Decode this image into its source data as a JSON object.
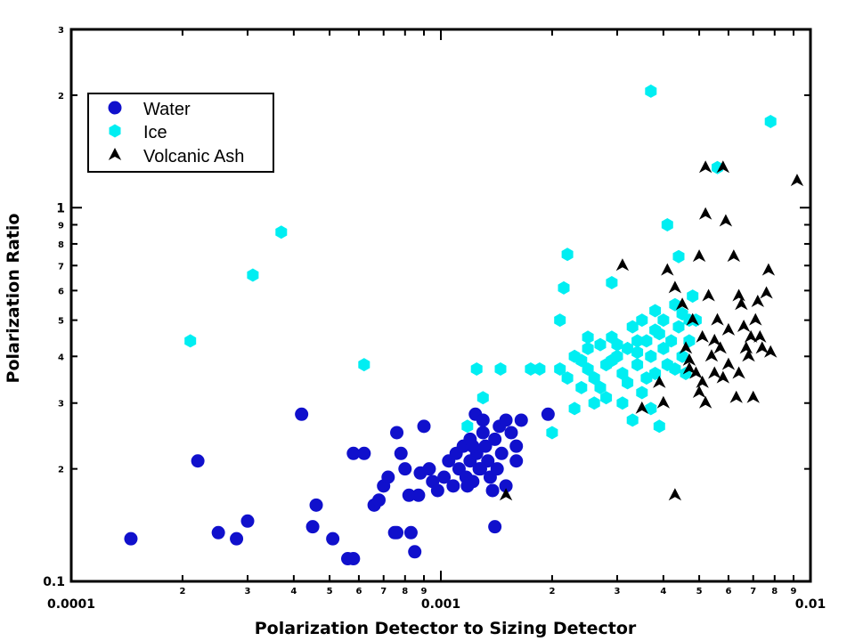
{
  "chart_data": {
    "type": "scatter",
    "xscale": "log",
    "yscale": "log",
    "xlim": [
      0.0001,
      0.01
    ],
    "ylim": [
      0.1,
      3
    ],
    "xlabel": "Polarization Detector to Sizing Detector",
    "ylabel": "Polarization Ratio",
    "x_major_ticks": [
      {
        "v": 0.0001,
        "label": "0.0001"
      },
      {
        "v": 0.001,
        "label": "0.001"
      },
      {
        "v": 0.01,
        "label": "0.01"
      }
    ],
    "x_minor_ticks": [
      {
        "v": 0.0002,
        "label": "2"
      },
      {
        "v": 0.0003,
        "label": "3"
      },
      {
        "v": 0.0004,
        "label": "4"
      },
      {
        "v": 0.0005,
        "label": "5"
      },
      {
        "v": 0.0006,
        "label": "6"
      },
      {
        "v": 0.0007,
        "label": "7"
      },
      {
        "v": 0.0008,
        "label": "8"
      },
      {
        "v": 0.0009,
        "label": "9"
      },
      {
        "v": 0.002,
        "label": "2"
      },
      {
        "v": 0.003,
        "label": "3"
      },
      {
        "v": 0.004,
        "label": "4"
      },
      {
        "v": 0.005,
        "label": "5"
      },
      {
        "v": 0.006,
        "label": "6"
      },
      {
        "v": 0.007,
        "label": "7"
      },
      {
        "v": 0.008,
        "label": "8"
      },
      {
        "v": 0.009,
        "label": "9"
      }
    ],
    "y_major_ticks": [
      {
        "v": 0.1,
        "label": "0.1"
      },
      {
        "v": 1,
        "label": "1"
      }
    ],
    "y_minor_ticks": [
      {
        "v": 0.2,
        "label": "2"
      },
      {
        "v": 0.3,
        "label": "3"
      },
      {
        "v": 0.4,
        "label": "4"
      },
      {
        "v": 0.5,
        "label": "5"
      },
      {
        "v": 0.6,
        "label": "6"
      },
      {
        "v": 0.7,
        "label": "7"
      },
      {
        "v": 0.8,
        "label": "8"
      },
      {
        "v": 0.9,
        "label": "9"
      },
      {
        "v": 2,
        "label": "2"
      },
      {
        "v": 3,
        "label": "3"
      }
    ],
    "grid": false,
    "legend": "top-left",
    "series": [
      {
        "name": "Water",
        "marker": "circle",
        "color": "#1010cc",
        "points": [
          [
            0.000145,
            0.13
          ],
          [
            0.00022,
            0.21
          ],
          [
            0.00025,
            0.135
          ],
          [
            0.00028,
            0.13
          ],
          [
            0.0003,
            0.145
          ],
          [
            0.00042,
            0.28
          ],
          [
            0.00045,
            0.14
          ],
          [
            0.00046,
            0.16
          ],
          [
            0.00051,
            0.13
          ],
          [
            0.00056,
            0.115
          ],
          [
            0.00058,
            0.115
          ],
          [
            0.00058,
            0.22
          ],
          [
            0.00062,
            0.22
          ],
          [
            0.00066,
            0.16
          ],
          [
            0.00068,
            0.165
          ],
          [
            0.0007,
            0.18
          ],
          [
            0.00072,
            0.19
          ],
          [
            0.00075,
            0.135
          ],
          [
            0.00076,
            0.135
          ],
          [
            0.00076,
            0.25
          ],
          [
            0.00078,
            0.22
          ],
          [
            0.0008,
            0.2
          ],
          [
            0.00082,
            0.17
          ],
          [
            0.00083,
            0.135
          ],
          [
            0.00085,
            0.12
          ],
          [
            0.00087,
            0.17
          ],
          [
            0.00088,
            0.195
          ],
          [
            0.0009,
            0.26
          ],
          [
            0.00093,
            0.2
          ],
          [
            0.00095,
            0.185
          ],
          [
            0.00098,
            0.175
          ],
          [
            0.00102,
            0.19
          ],
          [
            0.00105,
            0.21
          ],
          [
            0.00108,
            0.18
          ],
          [
            0.0011,
            0.22
          ],
          [
            0.00112,
            0.2
          ],
          [
            0.00115,
            0.23
          ],
          [
            0.00117,
            0.19
          ],
          [
            0.0012,
            0.21
          ],
          [
            0.0012,
            0.24
          ],
          [
            0.00122,
            0.185
          ],
          [
            0.00124,
            0.28
          ],
          [
            0.00125,
            0.22
          ],
          [
            0.00127,
            0.2
          ],
          [
            0.0013,
            0.25
          ],
          [
            0.0013,
            0.27
          ],
          [
            0.00132,
            0.23
          ],
          [
            0.00134,
            0.21
          ],
          [
            0.00136,
            0.19
          ],
          [
            0.00138,
            0.175
          ],
          [
            0.0014,
            0.24
          ],
          [
            0.0014,
            0.14
          ],
          [
            0.00142,
            0.2
          ],
          [
            0.00144,
            0.26
          ],
          [
            0.00146,
            0.22
          ],
          [
            0.0015,
            0.27
          ],
          [
            0.0015,
            0.18
          ],
          [
            0.00155,
            0.25
          ],
          [
            0.0016,
            0.21
          ],
          [
            0.0016,
            0.23
          ],
          [
            0.00165,
            0.27
          ],
          [
            0.00195,
            0.28
          ],
          [
            0.00128,
            0.2
          ],
          [
            0.00122,
            0.23
          ],
          [
            0.00118,
            0.18
          ]
        ]
      },
      {
        "name": "Ice",
        "marker": "hexagon",
        "color": "#00eef2",
        "points": [
          [
            0.00021,
            0.44
          ],
          [
            0.00031,
            0.66
          ],
          [
            0.00037,
            0.86
          ],
          [
            0.00062,
            0.38
          ],
          [
            0.00118,
            0.26
          ],
          [
            0.00125,
            0.37
          ],
          [
            0.0013,
            0.31
          ],
          [
            0.00145,
            0.37
          ],
          [
            0.00175,
            0.37
          ],
          [
            0.00185,
            0.37
          ],
          [
            0.002,
            0.25
          ],
          [
            0.0021,
            0.37
          ],
          [
            0.0021,
            0.5
          ],
          [
            0.00215,
            0.61
          ],
          [
            0.0022,
            0.75
          ],
          [
            0.0023,
            0.29
          ],
          [
            0.0024,
            0.39
          ],
          [
            0.0025,
            0.42
          ],
          [
            0.0026,
            0.35
          ],
          [
            0.0027,
            0.33
          ],
          [
            0.0028,
            0.38
          ],
          [
            0.0029,
            0.45
          ],
          [
            0.003,
            0.4
          ],
          [
            0.0031,
            0.36
          ],
          [
            0.0032,
            0.42
          ],
          [
            0.0033,
            0.48
          ],
          [
            0.0034,
            0.38
          ],
          [
            0.0035,
            0.5
          ],
          [
            0.0036,
            0.44
          ],
          [
            0.0037,
            0.4
          ],
          [
            0.0038,
            0.36
          ],
          [
            0.0039,
            0.46
          ],
          [
            0.004,
            0.42
          ],
          [
            0.0041,
            0.38
          ],
          [
            0.0042,
            0.44
          ],
          [
            0.0043,
            0.55
          ],
          [
            0.0044,
            0.48
          ],
          [
            0.0045,
            0.4
          ],
          [
            0.0046,
            0.36
          ],
          [
            0.0047,
            0.5
          ],
          [
            0.0048,
            0.58
          ],
          [
            0.0029,
            0.63
          ],
          [
            0.0031,
            0.3
          ],
          [
            0.0033,
            0.27
          ],
          [
            0.0035,
            0.32
          ],
          [
            0.0026,
            0.3
          ],
          [
            0.0028,
            0.31
          ],
          [
            0.0024,
            0.33
          ],
          [
            0.0025,
            0.37
          ],
          [
            0.0027,
            0.43
          ],
          [
            0.0032,
            0.34
          ],
          [
            0.0034,
            0.44
          ],
          [
            0.0036,
            0.35
          ],
          [
            0.0037,
            0.29
          ],
          [
            0.0038,
            0.53
          ],
          [
            0.0039,
            0.26
          ],
          [
            0.0041,
            0.9
          ],
          [
            0.0044,
            0.74
          ],
          [
            0.0037,
            2.05
          ],
          [
            0.0056,
            1.28
          ],
          [
            0.0078,
            1.7
          ],
          [
            0.0022,
            0.35
          ],
          [
            0.0023,
            0.4
          ],
          [
            0.0025,
            0.45
          ],
          [
            0.0029,
            0.39
          ],
          [
            0.003,
            0.43
          ],
          [
            0.0034,
            0.41
          ],
          [
            0.0038,
            0.47
          ],
          [
            0.004,
            0.5
          ],
          [
            0.0043,
            0.37
          ],
          [
            0.0045,
            0.52
          ],
          [
            0.0047,
            0.44
          ],
          [
            0.0049,
            0.5
          ]
        ]
      },
      {
        "name": "Volcanic Ash",
        "marker": "arrowhead",
        "color": "#000000",
        "points": [
          [
            0.0015,
            0.17
          ],
          [
            0.0031,
            0.7
          ],
          [
            0.0035,
            0.29
          ],
          [
            0.0039,
            0.34
          ],
          [
            0.004,
            0.3
          ],
          [
            0.0041,
            0.68
          ],
          [
            0.0043,
            0.61
          ],
          [
            0.0043,
            0.17
          ],
          [
            0.0045,
            0.55
          ],
          [
            0.0046,
            0.42
          ],
          [
            0.0047,
            0.39
          ],
          [
            0.0048,
            0.5
          ],
          [
            0.0049,
            0.36
          ],
          [
            0.005,
            0.74
          ],
          [
            0.005,
            0.32
          ],
          [
            0.0051,
            0.45
          ],
          [
            0.0052,
            0.96
          ],
          [
            0.0052,
            0.3
          ],
          [
            0.0053,
            0.58
          ],
          [
            0.0054,
            0.4
          ],
          [
            0.0055,
            0.36
          ],
          [
            0.0056,
            0.5
          ],
          [
            0.0057,
            0.42
          ],
          [
            0.0058,
            0.35
          ],
          [
            0.0059,
            0.92
          ],
          [
            0.006,
            0.47
          ],
          [
            0.006,
            0.38
          ],
          [
            0.0062,
            0.74
          ],
          [
            0.0063,
            0.31
          ],
          [
            0.0064,
            0.58
          ],
          [
            0.0065,
            0.55
          ],
          [
            0.0066,
            0.48
          ],
          [
            0.0067,
            0.42
          ],
          [
            0.0068,
            0.4
          ],
          [
            0.007,
            0.31
          ],
          [
            0.0071,
            0.5
          ],
          [
            0.0072,
            0.56
          ],
          [
            0.0073,
            0.45
          ],
          [
            0.0074,
            0.42
          ],
          [
            0.0076,
            0.59
          ],
          [
            0.0077,
            0.68
          ],
          [
            0.0078,
            0.41
          ],
          [
            0.0052,
            1.28
          ],
          [
            0.0058,
            1.28
          ],
          [
            0.0092,
            1.18
          ],
          [
            0.0047,
            0.37
          ],
          [
            0.0051,
            0.34
          ],
          [
            0.0055,
            0.44
          ],
          [
            0.0064,
            0.36
          ],
          [
            0.0069,
            0.45
          ]
        ]
      }
    ]
  }
}
